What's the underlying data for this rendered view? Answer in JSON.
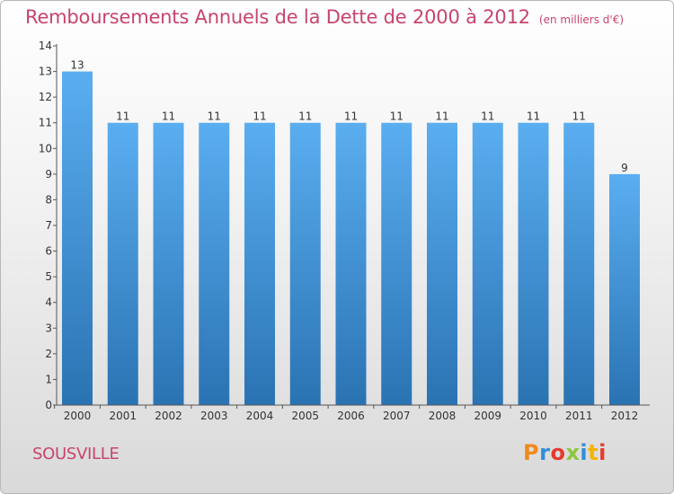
{
  "chart_data": {
    "type": "bar",
    "title": "Remboursements Annuels de la Dette de 2000 à 2012",
    "subtitle": "(en milliers d'€)",
    "categories": [
      "2000",
      "2001",
      "2002",
      "2003",
      "2004",
      "2005",
      "2006",
      "2007",
      "2008",
      "2009",
      "2010",
      "2011",
      "2012"
    ],
    "values": [
      13,
      11,
      11,
      11,
      11,
      11,
      11,
      11,
      11,
      11,
      11,
      11,
      9
    ],
    "ylim": [
      0,
      14
    ],
    "yticks": [
      0,
      1,
      2,
      3,
      4,
      5,
      6,
      7,
      8,
      9,
      10,
      11,
      12,
      13,
      14
    ],
    "xlabel": "",
    "ylabel": "",
    "grid": false,
    "bar_color_top": "#5aaef0",
    "bar_color_bottom": "#2a73b3",
    "label_color": "#333333"
  },
  "footer": {
    "city": "SOUSVILLE",
    "brand": [
      "P",
      "r",
      "o",
      "x",
      "i",
      "t",
      "i"
    ],
    "brand_colors": [
      "#f08a1c",
      "#2f8fd8",
      "#e63a2e",
      "#8dc63f",
      "#2f8fd8",
      "#f5b400",
      "#e63a2e"
    ]
  },
  "colors": {
    "title": "#c8446c",
    "axis": "#555555"
  }
}
